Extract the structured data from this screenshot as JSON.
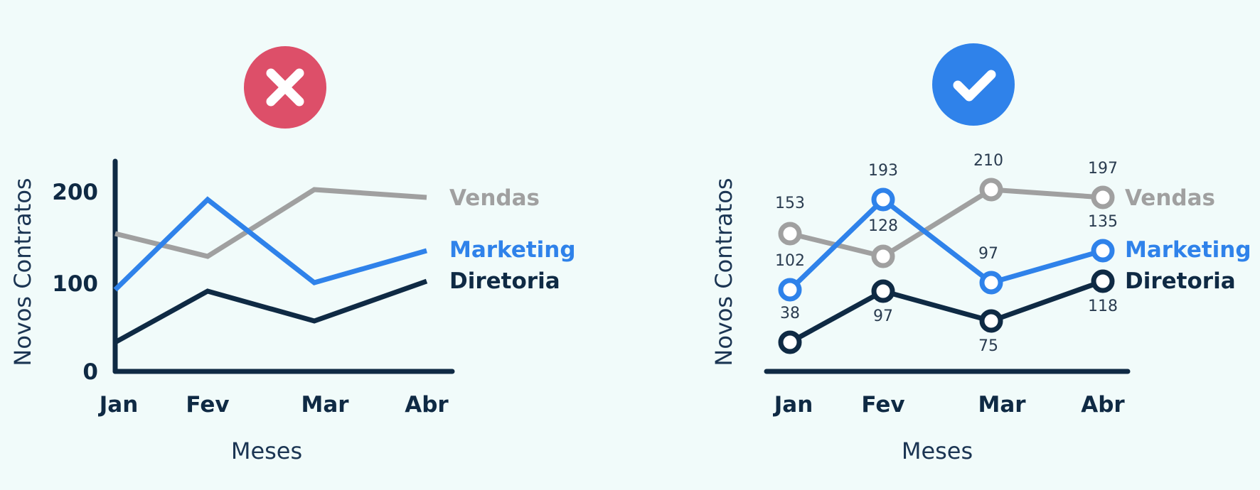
{
  "colors": {
    "background": "#f1fbfa",
    "axis": "#0f2a44",
    "bad_badge": "#dd4f69",
    "good_badge": "#2f82ea",
    "Vendas": "#a0a0a0",
    "Marketing": "#2f82ea",
    "Diretoria": "#0f2a44"
  },
  "panels": {
    "bad": {
      "badge_icon": "close-icon"
    },
    "good": {
      "badge_icon": "check-icon"
    }
  },
  "chart_data": [
    {
      "type": "line",
      "title": "",
      "xlabel": "Meses",
      "ylabel": "Novos Contratos",
      "categories": [
        "Jan",
        "Fev",
        "Mar",
        "Abr"
      ],
      "yticks": [
        "0",
        "100",
        "200"
      ],
      "ylim": [
        0,
        240
      ],
      "grid": false,
      "markers": false,
      "data_labels": false,
      "series": [
        {
          "name": "Vendas",
          "values": [
            153,
            128,
            210,
            197
          ]
        },
        {
          "name": "Marketing",
          "values": [
            102,
            193,
            97,
            135
          ]
        },
        {
          "name": "Diretoria",
          "values": [
            38,
            97,
            75,
            118
          ]
        }
      ]
    },
    {
      "type": "line",
      "title": "",
      "xlabel": "Meses",
      "ylabel": "Novos Contratos",
      "categories": [
        "Jan",
        "Fev",
        "Mar",
        "Abr"
      ],
      "ylim": [
        0,
        240
      ],
      "grid": false,
      "markers": true,
      "data_labels": true,
      "series": [
        {
          "name": "Vendas",
          "values": [
            153,
            128,
            210,
            197
          ],
          "labels": [
            "153",
            "128",
            "210",
            "197"
          ]
        },
        {
          "name": "Marketing",
          "values": [
            102,
            193,
            97,
            135
          ],
          "labels": [
            "102",
            "193",
            "97",
            "135"
          ]
        },
        {
          "name": "Diretoria",
          "values": [
            38,
            97,
            75,
            118
          ],
          "labels": [
            "38",
            "97",
            "75",
            "118"
          ]
        }
      ]
    }
  ]
}
